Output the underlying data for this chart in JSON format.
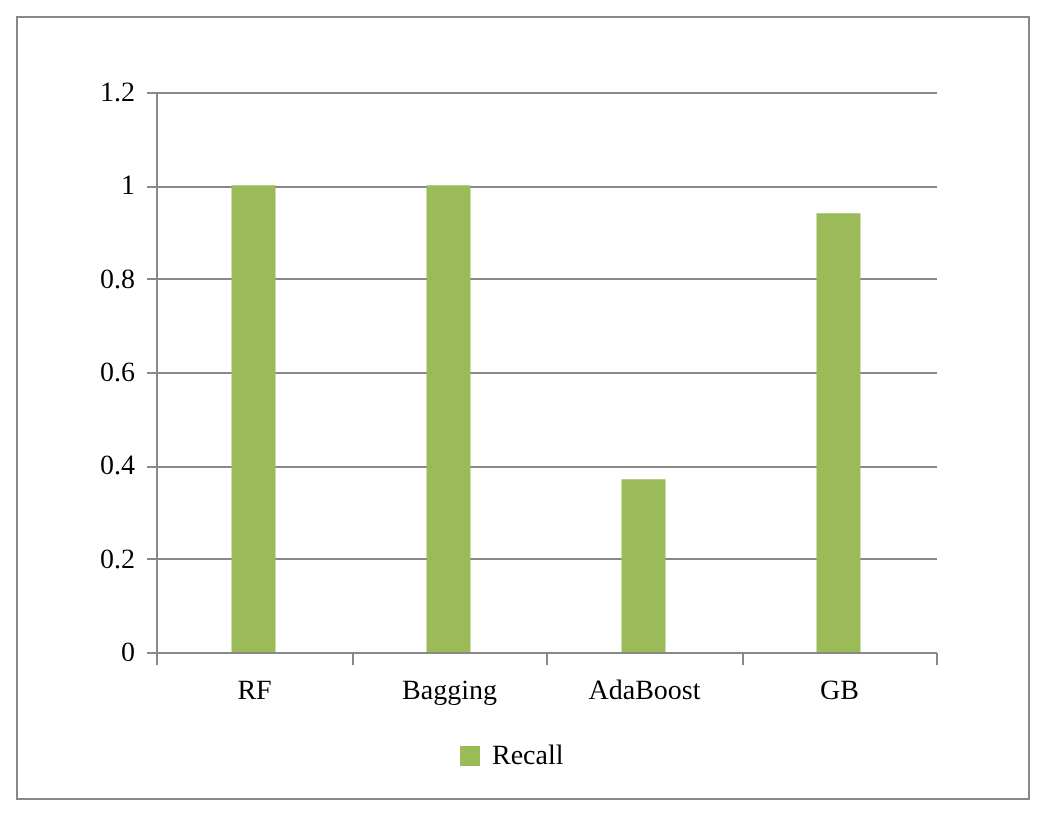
{
  "chart_data": {
    "type": "bar",
    "categories": [
      "RF",
      "Bagging",
      "AdaBoost",
      "GB"
    ],
    "series": [
      {
        "name": "Recall",
        "color": "#9bbb59",
        "values": [
          1,
          1,
          0.37,
          0.94
        ]
      }
    ],
    "ylim": [
      0,
      1.2
    ],
    "yticks": [
      0,
      0.2,
      0.4,
      0.6,
      0.8,
      1,
      1.2
    ],
    "grid": "y",
    "legend": "bottom"
  }
}
